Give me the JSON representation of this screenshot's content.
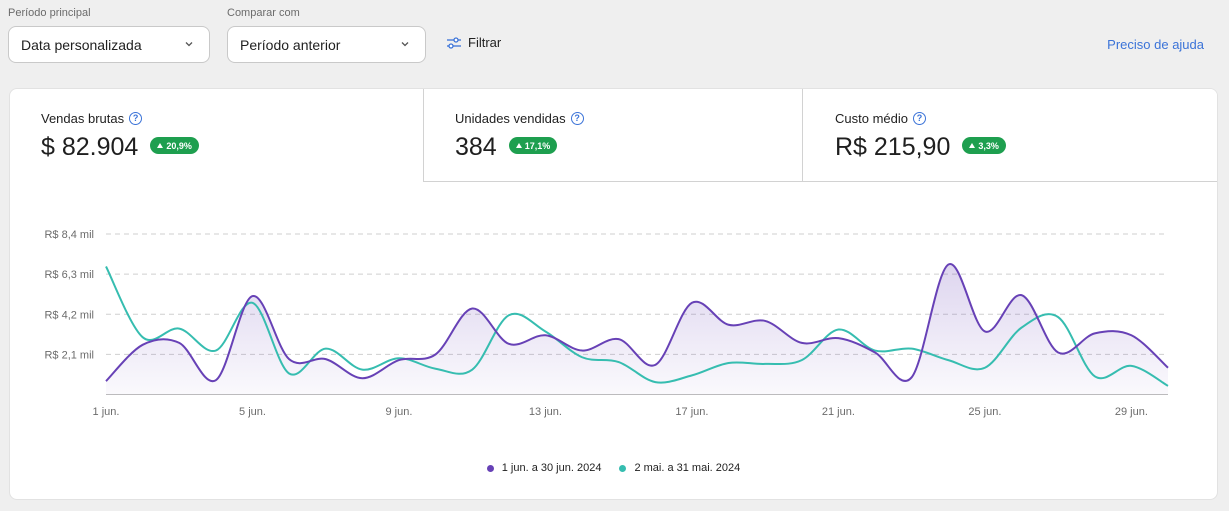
{
  "filters": {
    "primary_label": "Período principal",
    "primary_value": "Data personalizada",
    "compare_label": "Comparar com",
    "compare_value": "Período anterior",
    "filter_label": "Filtrar",
    "help_link": "Preciso de ajuda"
  },
  "metrics": [
    {
      "label": "Vendas brutas",
      "value": "$ 82.904",
      "change": "20,9%"
    },
    {
      "label": "Unidades vendidas",
      "value": "384",
      "change": "17,1%"
    },
    {
      "label": "Custo médio",
      "value": "R$ 215,90",
      "change": "3,3%"
    }
  ],
  "colors": {
    "current": "#6741b6",
    "previous": "#36bdb0",
    "current_fill": "#ece7f7",
    "positive_badge": "#1e9f4f",
    "link": "#3b73d8"
  },
  "icons": {
    "help": "question-circle-icon",
    "dropdown": "chevron-down-icon",
    "filter": "sliders-icon",
    "change": "triangle-up-icon"
  },
  "chart_data": {
    "type": "line",
    "ylim": [
      0,
      8400
    ],
    "y_ticks": [
      2100,
      4200,
      6300,
      8400
    ],
    "y_tick_labels": [
      "R$ 2,1 mil",
      "R$ 4,2 mil",
      "R$ 6,3 mil",
      "R$ 8,4 mil"
    ],
    "grid": "horizontal-dashed",
    "x": [
      1,
      2,
      3,
      4,
      5,
      6,
      7,
      8,
      9,
      10,
      11,
      12,
      13,
      14,
      15,
      16,
      17,
      18,
      19,
      20,
      21,
      22,
      23,
      24,
      25,
      26,
      27,
      28,
      29,
      30
    ],
    "x_ticks": [
      1,
      5,
      9,
      13,
      17,
      21,
      25,
      29
    ],
    "x_tick_labels": [
      "1 jun.",
      "5 jun.",
      "9 jun.",
      "13 jun.",
      "17 jun.",
      "21 jun.",
      "25 jun.",
      "29 jun."
    ],
    "legend_position": "bottom-center",
    "series": [
      {
        "name": "1 jun. a 30 jun. 2024",
        "values": [
          700,
          2600,
          2700,
          750,
          5150,
          1850,
          1850,
          850,
          1800,
          2100,
          4500,
          2650,
          3100,
          2300,
          2900,
          1550,
          4800,
          3650,
          3850,
          2700,
          2950,
          2200,
          900,
          6800,
          3300,
          5200,
          2200,
          3200,
          3100,
          1400
        ]
      },
      {
        "name": "2 mai. a 31 mai. 2024",
        "values": [
          6700,
          3000,
          3450,
          2300,
          4800,
          1100,
          2400,
          1300,
          1900,
          1350,
          1300,
          4150,
          3300,
          1950,
          1700,
          650,
          1000,
          1650,
          1600,
          1800,
          3400,
          2300,
          2400,
          1800,
          1400,
          3500,
          4050,
          950,
          1500,
          450
        ]
      }
    ]
  }
}
